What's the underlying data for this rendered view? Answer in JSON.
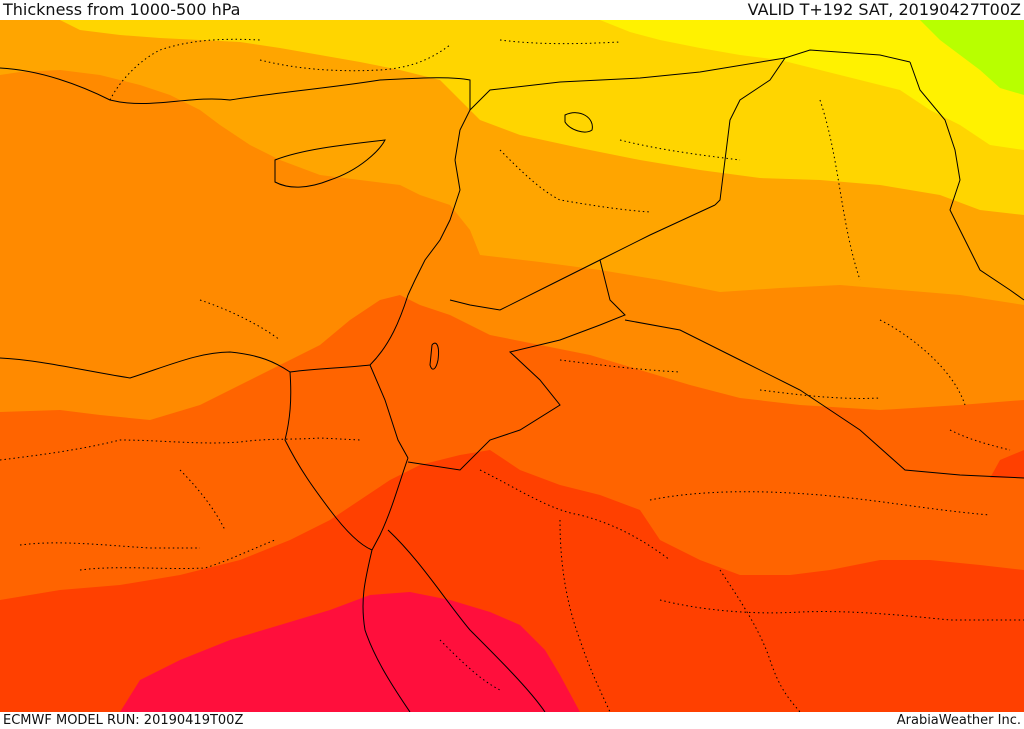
{
  "header": {
    "title": "Thickness from 1000-500 hPa",
    "valid": "VALID T+192 SAT, 20190427T00Z"
  },
  "footer": {
    "model_run": "ECMWF MODEL RUN: 20190419T00Z",
    "credit": "ArabiaWeather Inc."
  },
  "colors": {
    "band_1": "#b8ff00",
    "band_2": "#fff200",
    "band_3": "#ffd500",
    "band_4": "#ffa500",
    "band_5": "#ff8a00",
    "band_6": "#ff6400",
    "band_7": "#ff4000",
    "band_8": "#ff0f3c",
    "boundary_line": "#000000"
  }
}
